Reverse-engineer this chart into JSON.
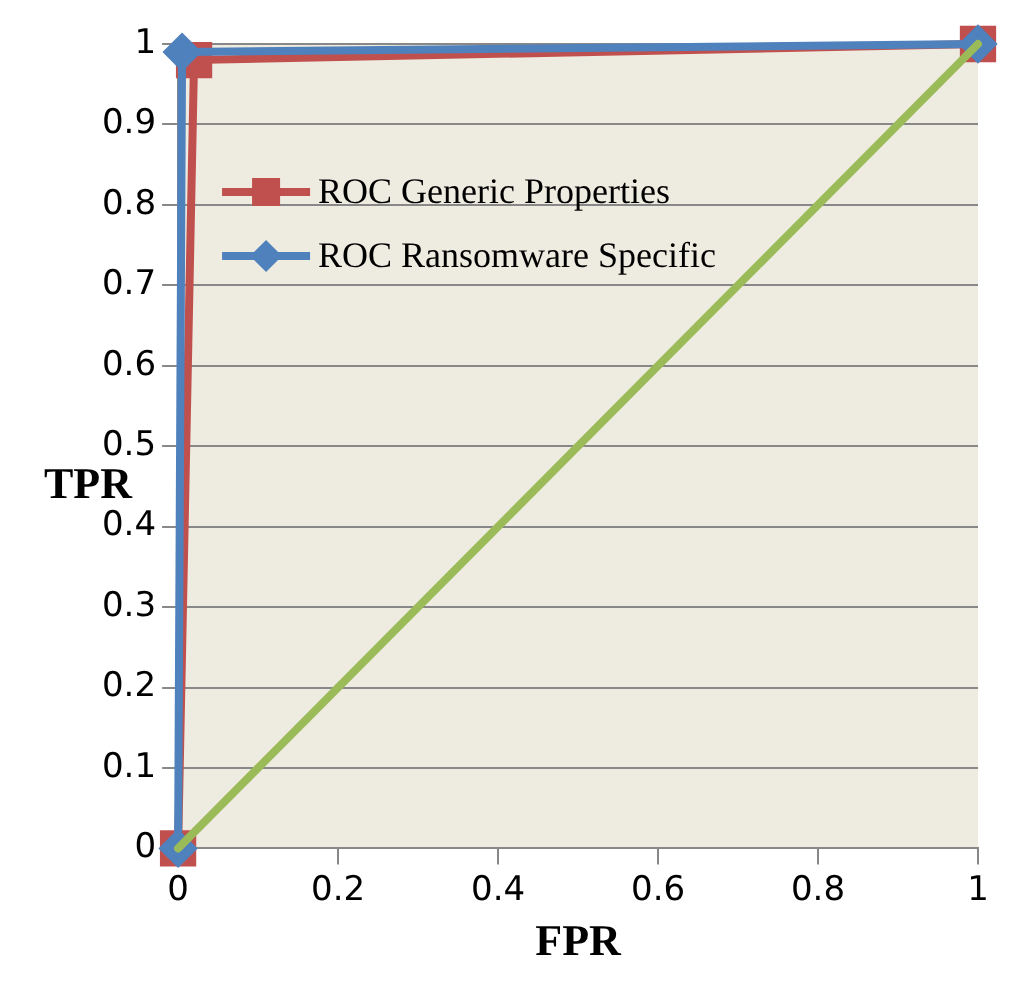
{
  "chart_data": {
    "type": "line",
    "xlabel": "FPR",
    "ylabel": "TPR",
    "xlim": [
      0,
      1
    ],
    "ylim": [
      0,
      1
    ],
    "xticks": [
      0,
      0.2,
      0.4,
      0.6,
      0.8,
      1
    ],
    "yticks": [
      0,
      0.1,
      0.2,
      0.3,
      0.4,
      0.5,
      0.6,
      0.7,
      0.8,
      0.9,
      1
    ],
    "grid": "y",
    "legend": "top left",
    "series": [
      {
        "name": "ROC Generic Properties",
        "color": "#c0504d",
        "marker": "square",
        "x": [
          0,
          0.02,
          1
        ],
        "values": [
          0,
          0.98,
          1
        ]
      },
      {
        "name": "ROC Ransomware Specific",
        "color": "#4f81bd",
        "marker": "diamond",
        "x": [
          0,
          0.005,
          1
        ],
        "values": [
          0,
          0.99,
          1
        ]
      },
      {
        "color": "#9bbb59",
        "marker": "none",
        "x": [
          0,
          1
        ],
        "values": [
          0,
          1
        ]
      }
    ]
  }
}
